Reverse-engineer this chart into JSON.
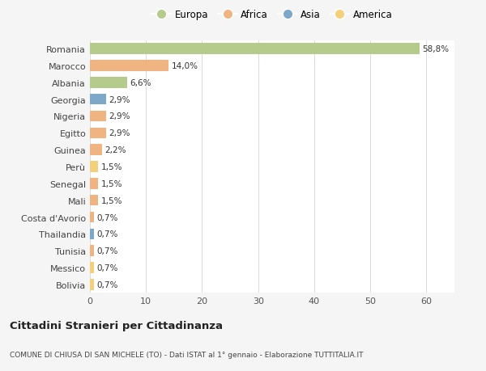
{
  "countries": [
    "Romania",
    "Marocco",
    "Albania",
    "Georgia",
    "Nigeria",
    "Egitto",
    "Guinea",
    "Perù",
    "Senegal",
    "Mali",
    "Costa d'Avorio",
    "Thailandia",
    "Tunisia",
    "Messico",
    "Bolivia"
  ],
  "values": [
    58.8,
    14.0,
    6.6,
    2.9,
    2.9,
    2.9,
    2.2,
    1.5,
    1.5,
    1.5,
    0.7,
    0.7,
    0.7,
    0.7,
    0.7
  ],
  "labels": [
    "58,8%",
    "14,0%",
    "6,6%",
    "2,9%",
    "2,9%",
    "2,9%",
    "2,2%",
    "1,5%",
    "1,5%",
    "1,5%",
    "0,7%",
    "0,7%",
    "0,7%",
    "0,7%",
    "0,7%"
  ],
  "continents": [
    "Europa",
    "Africa",
    "Europa",
    "Asia",
    "Africa",
    "Africa",
    "Africa",
    "America",
    "Africa",
    "Africa",
    "Africa",
    "Asia",
    "Africa",
    "America",
    "America"
  ],
  "continent_colors": {
    "Europa": "#b5cb8b",
    "Africa": "#f0b482",
    "Asia": "#7ea8c9",
    "America": "#f5d07a"
  },
  "legend_order": [
    "Europa",
    "Africa",
    "Asia",
    "America"
  ],
  "xlim": [
    0,
    65
  ],
  "xticks": [
    0,
    10,
    20,
    30,
    40,
    50,
    60
  ],
  "title": "Cittadini Stranieri per Cittadinanza",
  "subtitle": "COMUNE DI CHIUSA DI SAN MICHELE (TO) - Dati ISTAT al 1° gennaio - Elaborazione TUTTITALIA.IT",
  "bg_color": "#f5f5f5",
  "bar_bg_color": "#ffffff",
  "grid_color": "#dddddd"
}
